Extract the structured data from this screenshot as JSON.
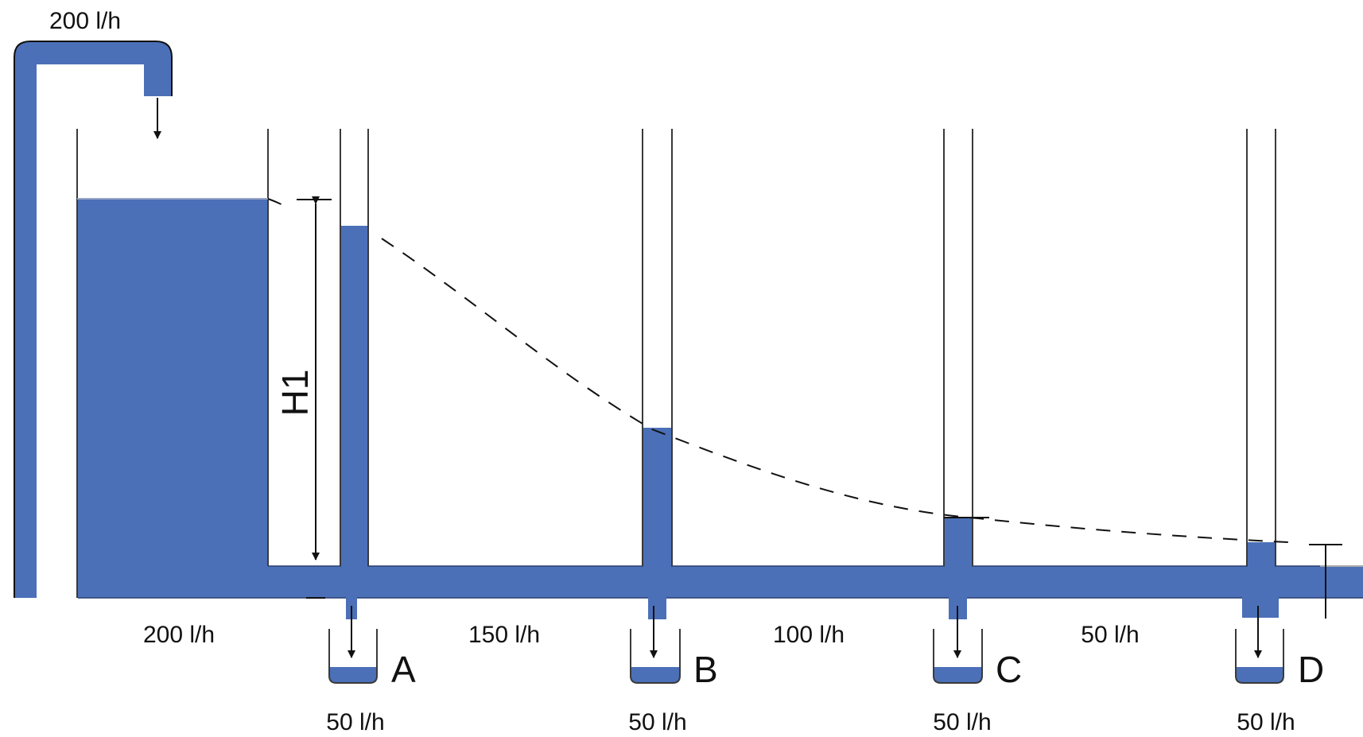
{
  "colors": {
    "water": "#4b70b8",
    "line": "#111111",
    "wall": "#3a3a3a",
    "background": "#ffffff"
  },
  "inflow_label": "200 l/h",
  "head_label": "H1",
  "segments": [
    {
      "flow": "200 l/h"
    },
    {
      "flow": "150 l/h"
    },
    {
      "flow": "100 l/h"
    },
    {
      "flow": "50 l/h"
    }
  ],
  "outlets": [
    {
      "letter": "A",
      "flow": "50 l/h"
    },
    {
      "letter": "B",
      "flow": "50 l/h"
    },
    {
      "letter": "C",
      "flow": "50 l/h"
    },
    {
      "letter": "D",
      "flow": "50 l/h"
    }
  ],
  "icons": {
    "flow_arrow": "arrow-down-icon",
    "dimension": "double-arrow-icon"
  }
}
